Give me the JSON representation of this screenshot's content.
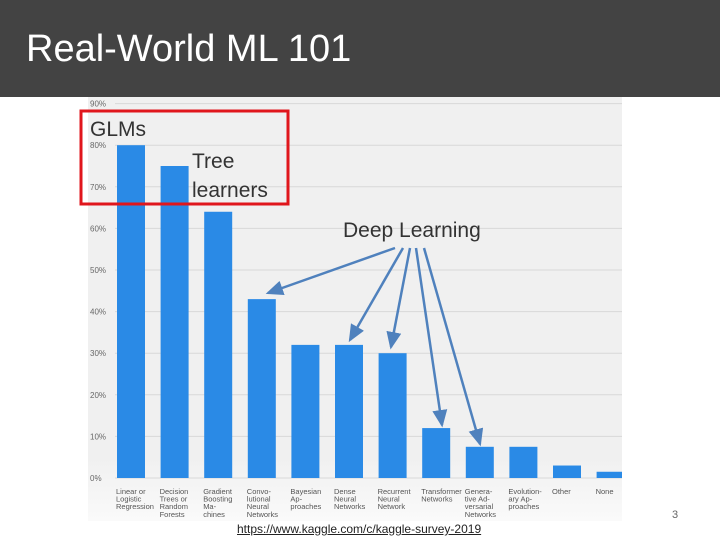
{
  "slide": {
    "title": "Real-World ML 101",
    "page_number": "3",
    "link": "https://www.kaggle.com/c/kaggle-survey-2019"
  },
  "annotations": {
    "glms": "GLMs",
    "tree": "Tree learners",
    "deep": "Deep Learning",
    "box_color": "#e0161c",
    "arrow_color": "#4f81bd"
  },
  "chart_data": {
    "type": "bar",
    "categories": [
      "Linear or Logistic Regression",
      "Decision Trees or Random Forests",
      "Gradient Boosting Machines",
      "Convolutional Neural Networks",
      "Bayesian Approaches",
      "Dense Neural Networks",
      "Recurrent Neural Network",
      "Transformer Networks",
      "Generative Adversarial Networks",
      "Evolutionary Approaches",
      "Other",
      "None"
    ],
    "category_lines": [
      [
        "Linear or",
        "Logistic",
        "Regression"
      ],
      [
        "Decision",
        "Trees or",
        "Random",
        "Forests"
      ],
      [
        "Gradient",
        "Boosting",
        "Ma-",
        "chines"
      ],
      [
        "Convo-",
        "lutional",
        "Neural",
        "Networks"
      ],
      [
        "Bayesian",
        "Ap-",
        "proaches"
      ],
      [
        "Dense",
        "Neural",
        "Networks"
      ],
      [
        "Recurrent",
        "Neural",
        "Network"
      ],
      [
        "Transformer",
        "Networks"
      ],
      [
        "Genera-",
        "tive Ad-",
        "versarial",
        "Networks"
      ],
      [
        "Evolution-",
        "ary Ap-",
        "proaches"
      ],
      [
        "Other"
      ],
      [
        "None"
      ]
    ],
    "values": [
      80,
      75,
      64,
      43,
      32,
      32,
      30,
      12,
      7.5,
      7.5,
      3,
      1.5
    ],
    "ylim": [
      0,
      90
    ],
    "yticks": [
      "0%",
      "10%",
      "20%",
      "30%",
      "40%",
      "50%",
      "60%",
      "70%",
      "80%",
      "90%"
    ],
    "grid": true,
    "bar_color": "#2a8ae6"
  }
}
